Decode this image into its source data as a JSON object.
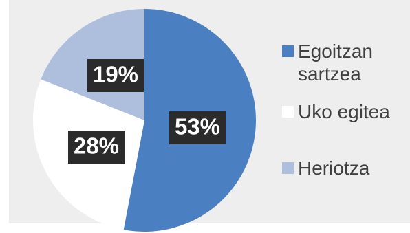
{
  "chart_data": {
    "type": "pie",
    "title": "",
    "categories": [
      "Egoitzan sartzea",
      "Uko egitea",
      "Heriotza"
    ],
    "values": [
      53,
      28,
      19
    ],
    "labels": [
      "53%",
      "28%",
      "19%"
    ],
    "colors": [
      "#4a7fc1",
      "#ffffff",
      "#adbfdd"
    ],
    "legend_position": "right",
    "start_angle_deg": 0,
    "direction": "clockwise"
  },
  "legend": {
    "items": [
      {
        "label": "Egoitzan sartzea",
        "color": "#4a7fc1"
      },
      {
        "label": "Uko egitea",
        "color": "#ffffff"
      },
      {
        "label": "Heriotza",
        "color": "#adbfdd"
      }
    ]
  },
  "style": {
    "panel_background": "#eeeeee",
    "label_box": "#2b2b2b",
    "legend_text": "#404040"
  }
}
